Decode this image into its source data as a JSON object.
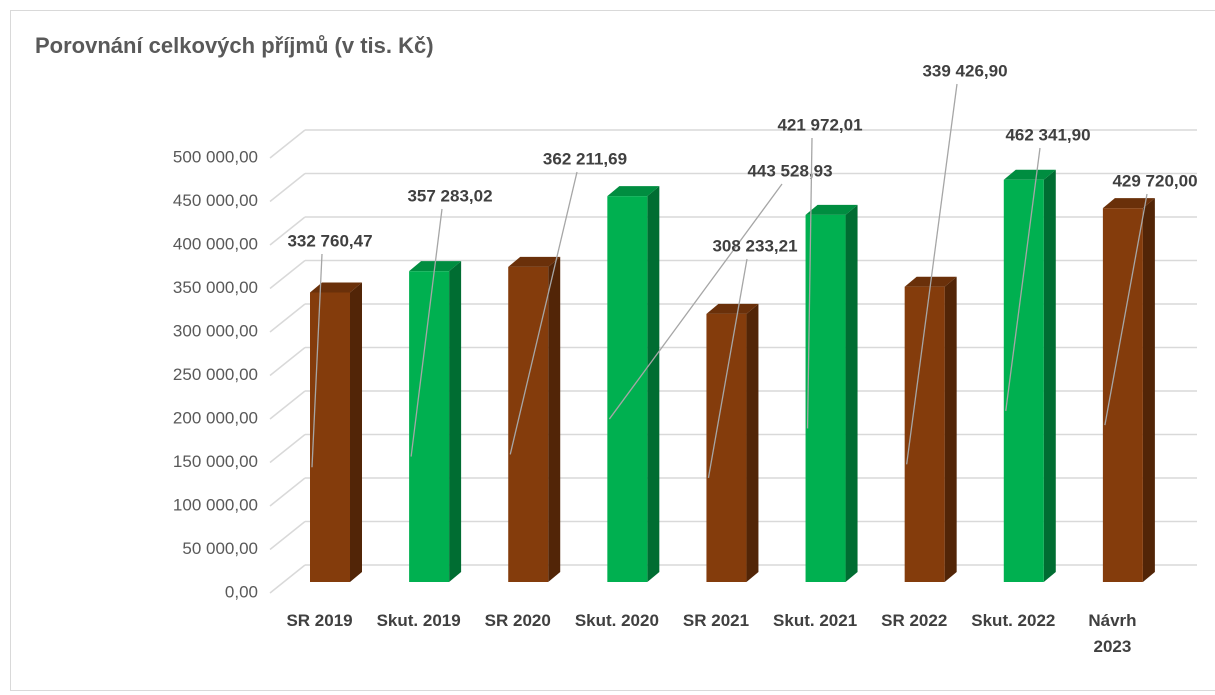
{
  "chart_data": {
    "type": "bar",
    "title": "Porovnání celkových příjmů (v tis. Kč)",
    "categories": [
      "SR 2019",
      "Skut. 2019",
      "SR 2020",
      "Skut. 2020",
      "SR 2021",
      "Skut. 2021",
      "SR 2022",
      "Skut. 2022",
      "Návrh 2023"
    ],
    "values": [
      332760.47,
      357283.02,
      362211.69,
      443528.93,
      308233.21,
      421972.01,
      339426.9,
      462341.9,
      429720.0
    ],
    "value_labels": [
      "332 760,47",
      "357 283,02",
      "362 211,69",
      "443 528,93",
      "308 233,21",
      "421 972,01",
      "339 426,90",
      "462 341,90",
      "429 720,00"
    ],
    "colors": [
      "#843c0c",
      "#00b050",
      "#843c0c",
      "#00b050",
      "#843c0c",
      "#00b050",
      "#843c0c",
      "#00b050",
      "#843c0c"
    ],
    "ylim": [
      0,
      500000
    ],
    "yticks": [
      {
        "value": 0,
        "label": "0,00"
      },
      {
        "value": 50000,
        "label": "50 000,00"
      },
      {
        "value": 100000,
        "label": "100 000,00"
      },
      {
        "value": 150000,
        "label": "150 000,00"
      },
      {
        "value": 200000,
        "label": "200 000,00"
      },
      {
        "value": 250000,
        "label": "250 000,00"
      },
      {
        "value": 300000,
        "label": "300 000,00"
      },
      {
        "value": 350000,
        "label": "350 000,00"
      },
      {
        "value": 400000,
        "label": "400 000,00"
      },
      {
        "value": 450000,
        "label": "450 000,00"
      },
      {
        "value": 500000,
        "label": "500 000,00"
      }
    ],
    "grid": true
  }
}
